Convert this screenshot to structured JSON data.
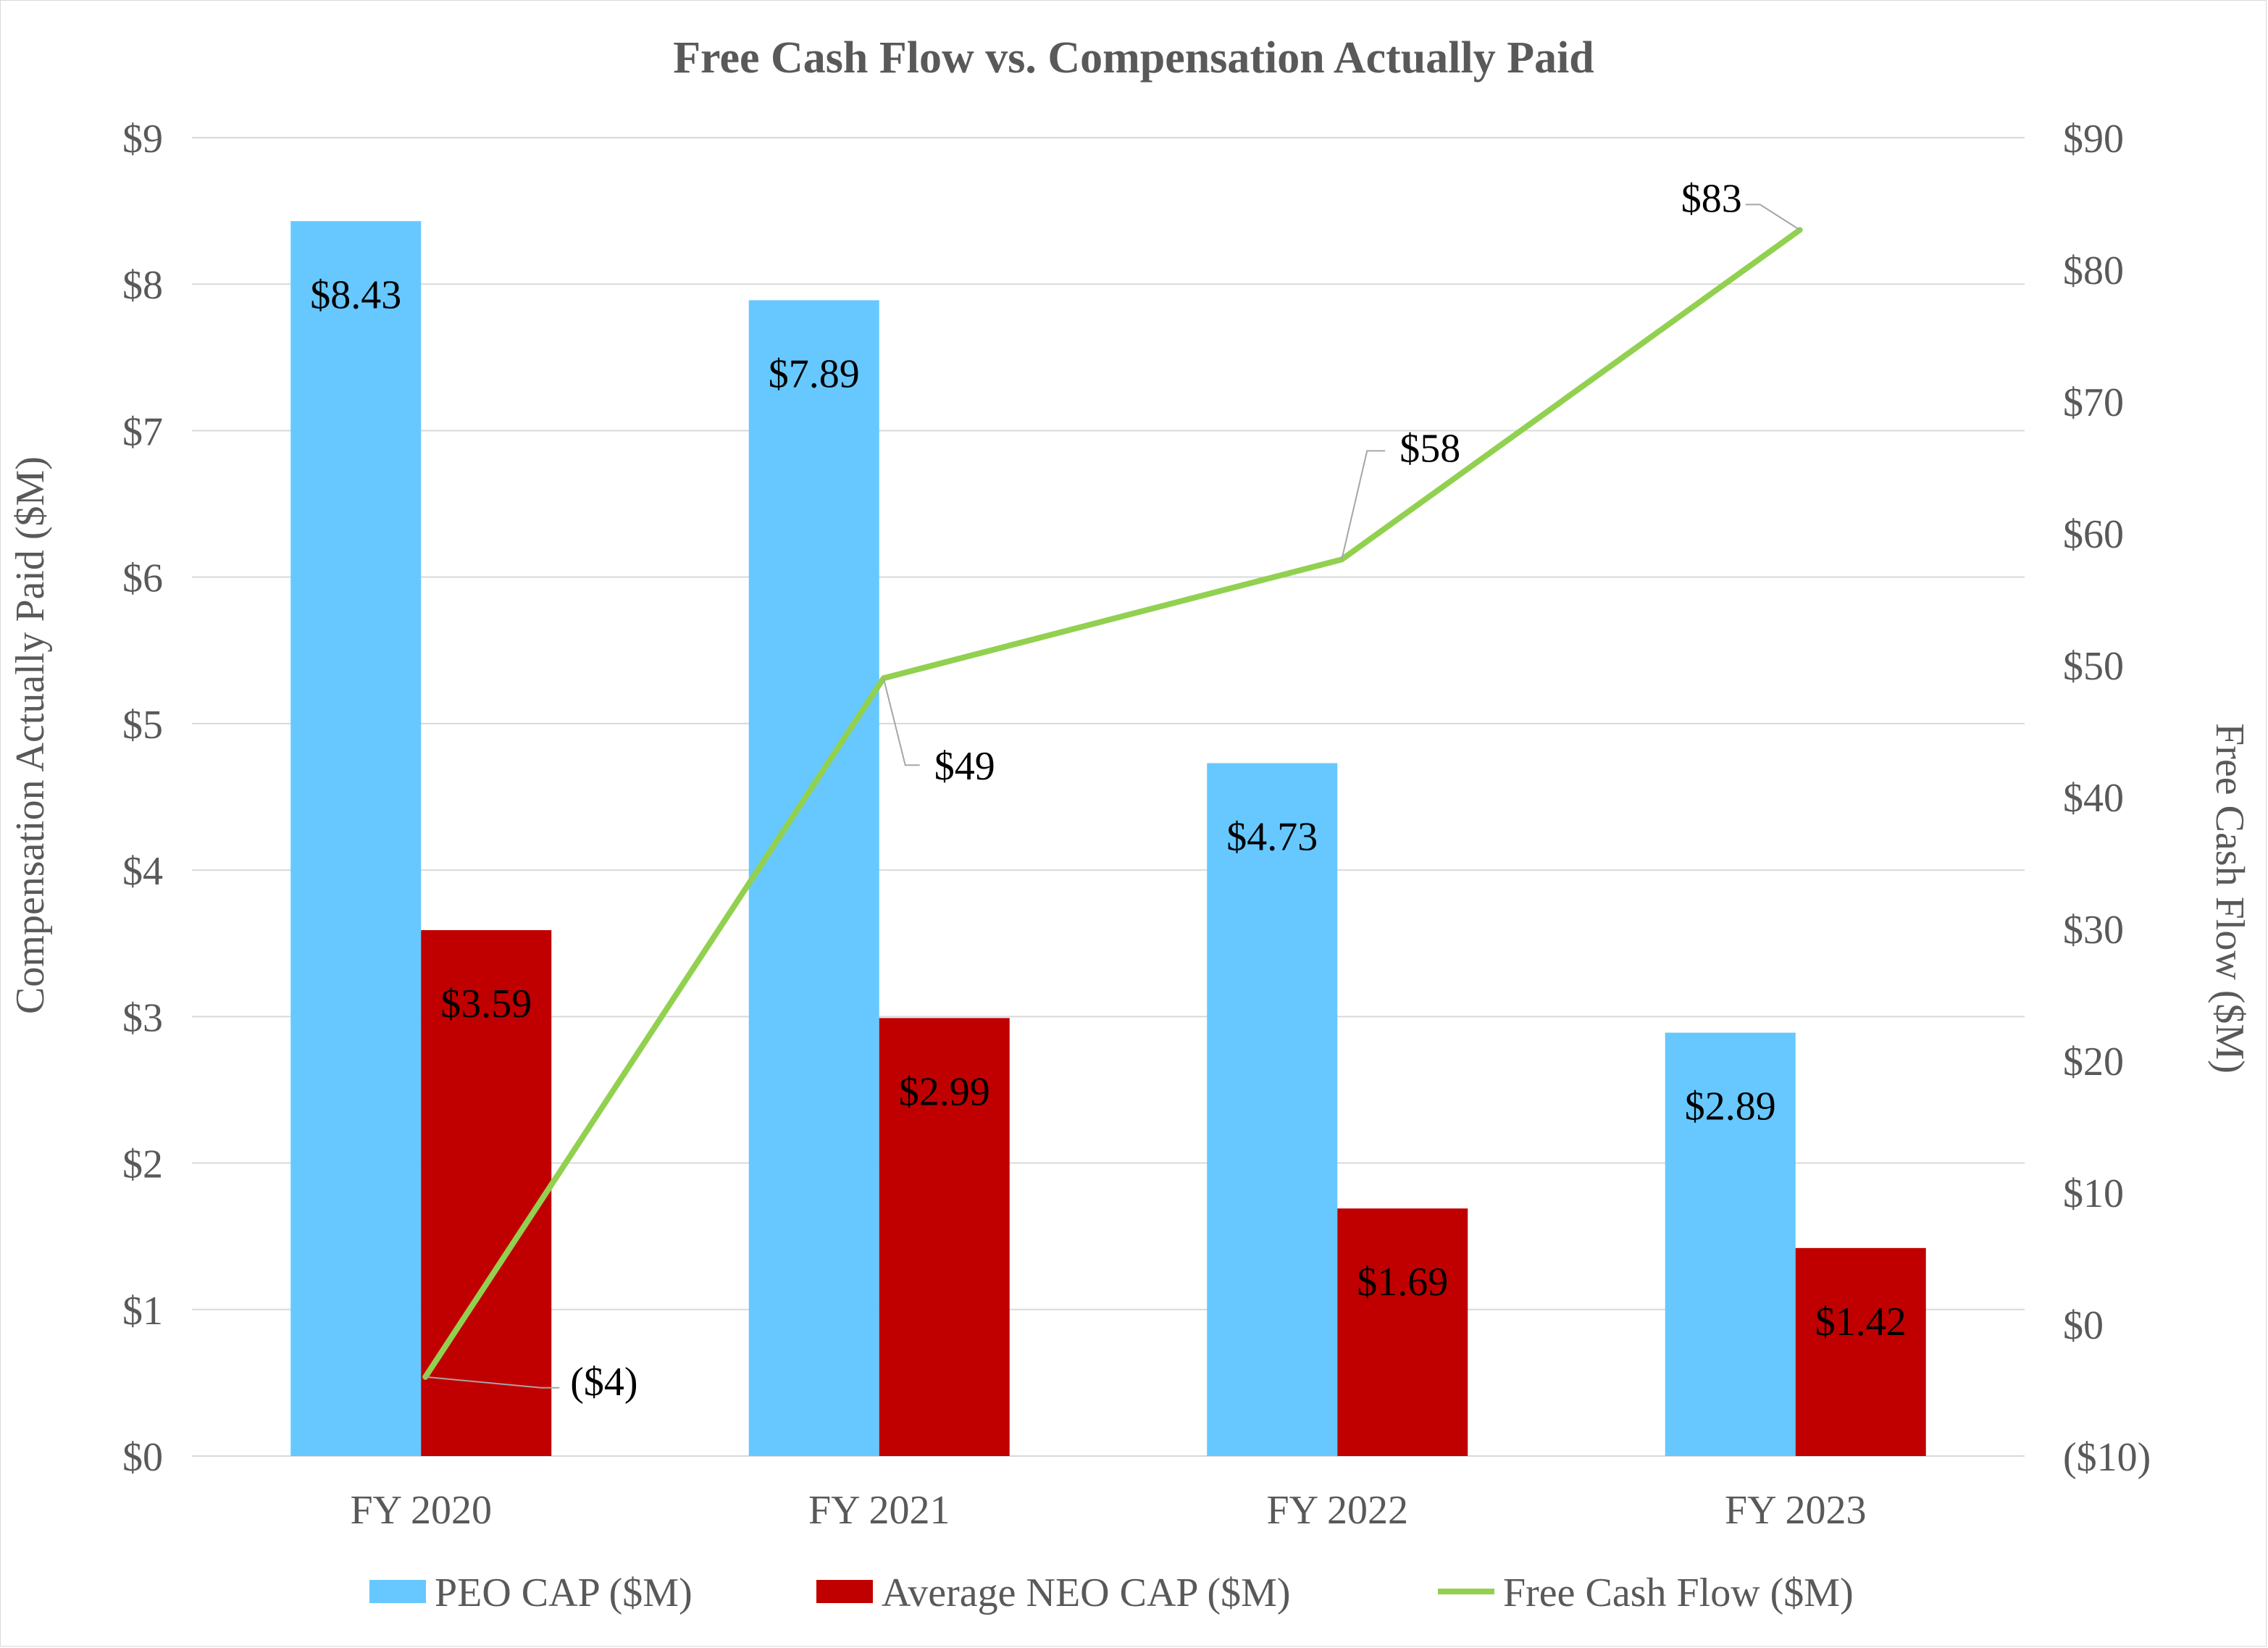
{
  "chart_data": {
    "type": "bar",
    "title": "Free Cash Flow vs. Compensation Actually Paid",
    "categories": [
      "FY 2020",
      "FY 2021",
      "FY 2022",
      "FY 2023"
    ],
    "series": [
      {
        "name": "PEO CAP ($M)",
        "kind": "bar",
        "axis": "left",
        "color": "#66C8FF",
        "values": [
          8.43,
          7.89,
          4.73,
          2.89
        ],
        "labels": [
          "$8.43",
          "$7.89",
          "$4.73",
          "$2.89"
        ]
      },
      {
        "name": "Average NEO CAP ($M)",
        "kind": "bar",
        "axis": "left",
        "color": "#C00000",
        "values": [
          3.59,
          2.99,
          1.69,
          1.42
        ],
        "labels": [
          "$3.59",
          "$2.99",
          "$1.69",
          "$1.42"
        ]
      },
      {
        "name": "Free Cash Flow ($M)",
        "kind": "line",
        "axis": "right",
        "color": "#92D050",
        "values": [
          -4,
          49,
          58,
          83
        ],
        "labels": [
          "($4)",
          "$49",
          "$58",
          "$83"
        ],
        "label_colors": [
          "#FF0000",
          "#000000",
          "#000000",
          "#000000"
        ]
      }
    ],
    "left_axis": {
      "label": "Compensation Actually Paid ($M)",
      "min": 0,
      "max": 9,
      "ticks": [
        0,
        1,
        2,
        3,
        4,
        5,
        6,
        7,
        8,
        9
      ],
      "tick_labels": [
        "$0",
        "$1",
        "$2",
        "$3",
        "$4",
        "$5",
        "$6",
        "$7",
        "$8",
        "$9"
      ]
    },
    "right_axis": {
      "label": "Free Cash Flow ($M)",
      "min": -10,
      "max": 90,
      "ticks": [
        -10,
        0,
        10,
        20,
        30,
        40,
        50,
        60,
        70,
        80,
        90
      ],
      "tick_labels": [
        "($10)",
        "$0",
        "$10",
        "$20",
        "$30",
        "$40",
        "$50",
        "$60",
        "$70",
        "$80",
        "$90"
      ],
      "negative_color": "#FF0000"
    },
    "grid": true,
    "legend": "bottom",
    "colors": {
      "grid": "#D9D9D9",
      "text": "#595959",
      "leader": "#A6A6A6"
    }
  }
}
